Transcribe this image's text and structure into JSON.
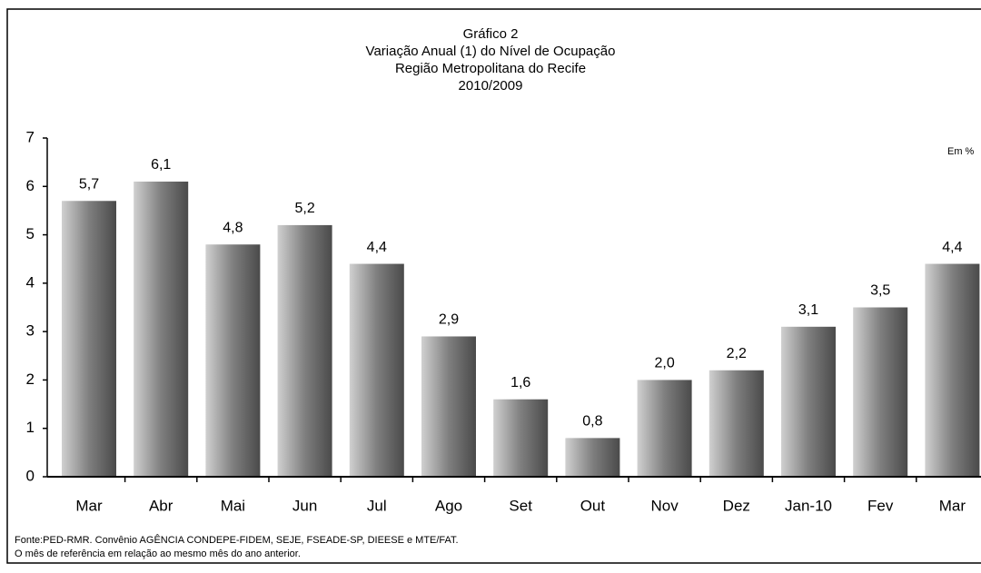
{
  "chart_data": {
    "type": "bar",
    "title": "Gráfico 2",
    "subtitle": [
      "Variação Anual (1) do Nível de Ocupação",
      "Região Metropolitana do Recife",
      "2010/2009"
    ],
    "unit_label": "Em %",
    "categories": [
      "Mar",
      "Abr",
      "Mai",
      "Jun",
      "Jul",
      "Ago",
      "Set",
      "Out",
      "Nov",
      "Dez",
      "Jan-10",
      "Fev",
      "Mar"
    ],
    "values": [
      5.7,
      6.1,
      4.8,
      5.2,
      4.4,
      2.9,
      1.6,
      0.8,
      2.0,
      2.2,
      3.1,
      3.5,
      4.4
    ],
    "value_labels": [
      "5,7",
      "6,1",
      "4,8",
      "5,2",
      "4,4",
      "2,9",
      "1,6",
      "0,8",
      "2,0",
      "2,2",
      "3,1",
      "3,5",
      "4,4"
    ],
    "color": "#7f7f7f",
    "ylim": [
      0,
      7
    ],
    "yticks": [
      0,
      1,
      2,
      3,
      4,
      5,
      6,
      7
    ],
    "grid": false,
    "notes": [
      "Fonte:PED-RMR. Convênio AGÊNCIA CONDEPE-FIDEM, SEJE, FSEADE-SP, DIEESE e MTE/FAT.",
      "O mês de referência em relação ao mesmo mês do ano anterior."
    ]
  }
}
